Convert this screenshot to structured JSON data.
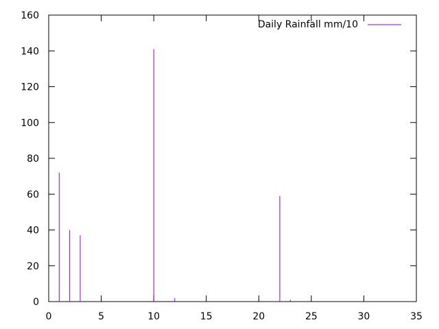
{
  "chart_data": {
    "type": "impulse",
    "series": [
      {
        "name": "Daily Rainfall mm/10",
        "color": "#9400d3",
        "x": [
          1,
          2,
          3,
          10,
          12,
          22,
          23
        ],
        "y": [
          72,
          40,
          37,
          141,
          2,
          59,
          1
        ]
      }
    ],
    "xlim": [
      0,
      35
    ],
    "ylim": [
      0,
      160
    ],
    "x_ticks": [
      "0",
      "5",
      "10",
      "15",
      "20",
      "25",
      "30",
      "35"
    ],
    "y_ticks": [
      "0",
      "20",
      "40",
      "60",
      "80",
      "100",
      "120",
      "140",
      "160"
    ],
    "grid": false,
    "legend_position": "top-right"
  }
}
